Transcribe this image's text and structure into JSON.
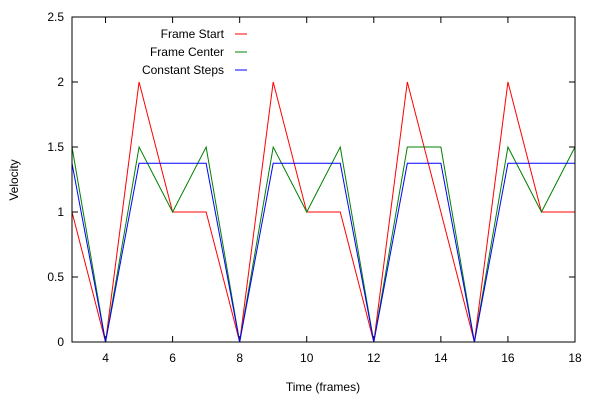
{
  "chart_data": {
    "type": "line",
    "title": "",
    "xlabel": "Time (frames)",
    "ylabel": "Velocity",
    "xlim": [
      3,
      18
    ],
    "ylim": [
      0,
      2.5
    ],
    "xticks": [
      4,
      6,
      8,
      10,
      12,
      14,
      16,
      18
    ],
    "yticks": [
      0,
      0.5,
      1,
      1.5,
      2,
      2.5
    ],
    "ytick_labels": [
      "0",
      "0.5",
      "1",
      "1.5",
      "2",
      "2.5"
    ],
    "legend_position": "top-left",
    "x": [
      3,
      4,
      5,
      6,
      7,
      8,
      9,
      10,
      11,
      12,
      13,
      14,
      15,
      16,
      17,
      18
    ],
    "series": [
      {
        "name": "Frame Start",
        "color": "#ff0000",
        "values": [
          1,
          0,
          2,
          1,
          1,
          0,
          2,
          1,
          1,
          0,
          2,
          1,
          0,
          2,
          1,
          1
        ]
      },
      {
        "name": "Frame Center",
        "color": "#008000",
        "values": [
          1.5,
          0,
          1.5,
          1,
          1.5,
          0,
          1.5,
          1,
          1.5,
          0,
          1.5,
          1.5,
          0,
          1.5,
          1,
          1.5
        ]
      },
      {
        "name": "Constant Steps",
        "color": "#0000ff",
        "values": [
          1.375,
          0,
          1.375,
          1.375,
          1.375,
          0,
          1.375,
          1.375,
          1.375,
          0,
          1.375,
          1.375,
          0,
          1.375,
          1.375,
          1.375
        ]
      }
    ]
  }
}
